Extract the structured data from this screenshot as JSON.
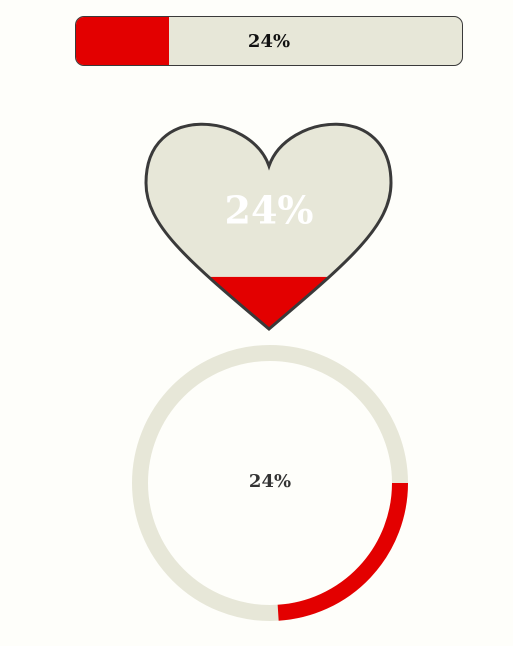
{
  "progress": {
    "value": 24,
    "label": "24%"
  },
  "colors": {
    "fill": "#e30000",
    "track": "#e7e7d8",
    "outline": "#3a3a3a",
    "heart_text": "#ffffff",
    "ring_text": "#333333",
    "bar_text": "#111111"
  }
}
